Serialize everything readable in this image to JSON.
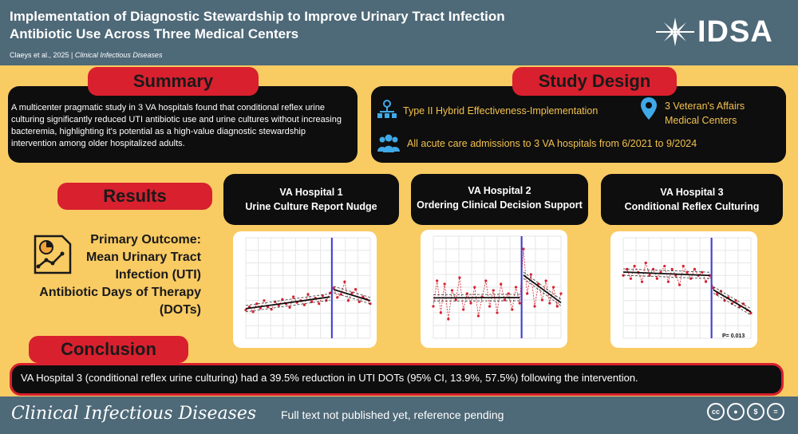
{
  "header": {
    "title": "Implementation of Diagnostic Stewardship to Improve Urinary Tract Infection Antibiotic Use Across Three Medical Centers",
    "citation_authors": "Claeys et al., 2025 | ",
    "citation_journal": "Clinical Infectious Diseases",
    "logo_text": "IDSA"
  },
  "summary": {
    "label": "Summary",
    "text": "A multicenter pragmatic study in 3 VA hospitals found that conditional reflex urine culturing significantly reduced UTI antibiotic use and urine cultures without increasing bacteremia, highlighting it's potential as a high-value diagnostic stewardship intervention among older hospitalized adults."
  },
  "study_design": {
    "label": "Study Design",
    "design": "Type II Hybrid Effectiveness-Implementation",
    "location_line1": "3 Veteran's Affairs",
    "location_line2": "Medical Centers",
    "population": "All acute care admissions to 3 VA hospitals from 6/2021 to 9/2024"
  },
  "results": {
    "label": "Results",
    "outcome_lines": [
      "Primary Outcome:",
      "Mean Urinary Tract",
      "Infection (UTI)",
      "Antibiotic Days of Therapy",
      "(DOTs)"
    ]
  },
  "hospitals": [
    {
      "line1": "VA Hospital 1",
      "line2": "Urine Culture Report Nudge",
      "annotation": ""
    },
    {
      "line1": "VA Hospital 2",
      "line2": "Ordering Clinical Decision Support",
      "annotation": ""
    },
    {
      "line1": "VA Hospital 3",
      "line2": "Conditional Reflex Culturing",
      "annotation": "P= 0.013"
    }
  ],
  "plots": [
    {
      "pre": [
        0.45,
        0.5,
        0.42,
        0.55,
        0.48,
        0.6,
        0.5,
        0.46,
        0.58,
        0.52,
        0.62,
        0.55,
        0.49,
        0.66,
        0.57,
        0.6,
        0.53,
        0.7,
        0.58,
        0.64,
        0.55,
        0.68,
        0.6,
        0.72
      ],
      "post": [
        0.8,
        0.65,
        0.7,
        0.9,
        0.6,
        0.72,
        0.78,
        0.58,
        0.66,
        0.62,
        0.55
      ]
    },
    {
      "pre": [
        0.5,
        0.9,
        0.4,
        0.85,
        0.3,
        0.75,
        0.6,
        0.95,
        0.45,
        0.7,
        0.55,
        0.8,
        0.35,
        0.65,
        0.9,
        0.5,
        0.75,
        0.4,
        0.85,
        0.6,
        0.7,
        0.45,
        0.8,
        0.55
      ],
      "post": [
        1.4,
        0.7,
        1.0,
        0.5,
        0.85,
        0.6,
        0.9,
        0.55,
        0.8,
        0.5,
        0.7
      ]
    },
    {
      "pre": [
        1.0,
        1.1,
        0.95,
        1.15,
        1.05,
        0.9,
        1.2,
        1.0,
        1.1,
        0.95,
        1.05,
        1.15,
        0.9,
        1.1,
        1.0,
        0.85,
        1.15,
        1.05,
        0.95,
        1.1,
        1.0,
        1.05,
        0.9,
        1.0
      ],
      "post": [
        0.8,
        0.7,
        0.75,
        0.6,
        0.65,
        0.55,
        0.6,
        0.5,
        0.55,
        0.45,
        0.4
      ]
    }
  ],
  "conclusion": {
    "label": "Conclusion",
    "text": "VA Hospital 3 (conditional reflex urine culturing) had a 39.5% reduction in UTI DOTs (95% CI, 13.9%, 57.5%) following the intervention."
  },
  "footer": {
    "journal": "Clinical Infectious Diseases",
    "note": "Full text not published yet, reference pending",
    "license_icons": [
      "cc",
      "by",
      "nc",
      "nd"
    ]
  }
}
